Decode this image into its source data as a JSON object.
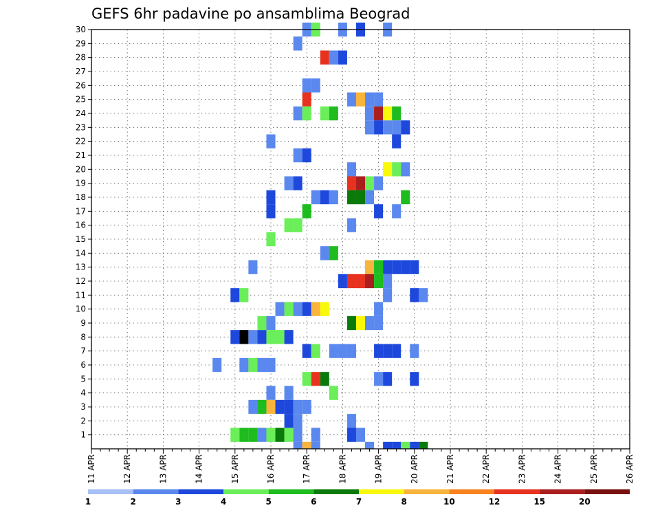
{
  "chart_data": {
    "type": "heatmap",
    "title": "GEFS 6hr padavine po ansamblima Beograd",
    "xlabel": "",
    "ylabel": "",
    "x_unit": "6h steps",
    "x_ticks": [
      "11 APR",
      "12 APR",
      "13 APR",
      "14 APR",
      "15 APR",
      "16 APR",
      "17 APR",
      "18 APR",
      "19 APR",
      "20 APR",
      "21 APR",
      "22 APR",
      "23 APR",
      "24 APR",
      "25 APR",
      "26 APR"
    ],
    "y_ticks": [
      "1",
      "2",
      "3",
      "4",
      "5",
      "6",
      "7",
      "8",
      "9",
      "10",
      "11",
      "12",
      "13",
      "14",
      "15",
      "16",
      "17",
      "18",
      "19",
      "20",
      "21",
      "22",
      "23",
      "24",
      "25",
      "26",
      "27",
      "28",
      "29",
      "30"
    ],
    "ylim": [
      0,
      30
    ],
    "grid": true,
    "colorbar": {
      "labels": [
        "1",
        "2",
        "3",
        "4",
        "5",
        "6",
        "7",
        "8",
        "10",
        "12",
        "15",
        "20"
      ],
      "colors": [
        "#a8c0f8",
        "#5a88ee",
        "#1e48dc",
        "#6aee5a",
        "#1ebc1e",
        "#0a7a0a",
        "#f8f80a",
        "#f8b43c",
        "#f8821e",
        "#e6321e",
        "#aa1e1e",
        "#781010"
      ]
    },
    "cells": [
      [
        24,
        30,
        1
      ],
      [
        25,
        30,
        3
      ],
      [
        28,
        30,
        1
      ],
      [
        30,
        30,
        2
      ],
      [
        33,
        30,
        1
      ],
      [
        23,
        29,
        1
      ],
      [
        26,
        28,
        9
      ],
      [
        27,
        28,
        1
      ],
      [
        28,
        28,
        2
      ],
      [
        24,
        26,
        1
      ],
      [
        25,
        26,
        1
      ],
      [
        24,
        25,
        9
      ],
      [
        29,
        25,
        1
      ],
      [
        30,
        25,
        7
      ],
      [
        31,
        25,
        1
      ],
      [
        32,
        25,
        1
      ],
      [
        23,
        24,
        1
      ],
      [
        24,
        24,
        3
      ],
      [
        26,
        24,
        3
      ],
      [
        27,
        24,
        4
      ],
      [
        31,
        24,
        1
      ],
      [
        32,
        24,
        10
      ],
      [
        33,
        24,
        6
      ],
      [
        34,
        24,
        4
      ],
      [
        31,
        23,
        1
      ],
      [
        32,
        23,
        2
      ],
      [
        33,
        23,
        1
      ],
      [
        34,
        23,
        1
      ],
      [
        35,
        23,
        2
      ],
      [
        20,
        22,
        1
      ],
      [
        34,
        22,
        2
      ],
      [
        23,
        21,
        1
      ],
      [
        24,
        21,
        2
      ],
      [
        29,
        20,
        1
      ],
      [
        33,
        20,
        6
      ],
      [
        34,
        20,
        3
      ],
      [
        35,
        20,
        1
      ],
      [
        22,
        19,
        1
      ],
      [
        23,
        19,
        2
      ],
      [
        29,
        19,
        9
      ],
      [
        30,
        19,
        10
      ],
      [
        31,
        19,
        3
      ],
      [
        32,
        19,
        1
      ],
      [
        20,
        18,
        2
      ],
      [
        25,
        18,
        1
      ],
      [
        26,
        18,
        2
      ],
      [
        27,
        18,
        1
      ],
      [
        29,
        18,
        5
      ],
      [
        30,
        18,
        5
      ],
      [
        31,
        18,
        1
      ],
      [
        35,
        18,
        4
      ],
      [
        20,
        17,
        2
      ],
      [
        24,
        17,
        4
      ],
      [
        32,
        17,
        2
      ],
      [
        34,
        17,
        1
      ],
      [
        22,
        16,
        3
      ],
      [
        23,
        16,
        3
      ],
      [
        29,
        16,
        1
      ],
      [
        20,
        15,
        3
      ],
      [
        26,
        14,
        1
      ],
      [
        27,
        14,
        4
      ],
      [
        18,
        13,
        1
      ],
      [
        31,
        13,
        7
      ],
      [
        32,
        13,
        4
      ],
      [
        33,
        13,
        2
      ],
      [
        34,
        13,
        2
      ],
      [
        35,
        13,
        2
      ],
      [
        36,
        13,
        2
      ],
      [
        28,
        12,
        2
      ],
      [
        29,
        12,
        9
      ],
      [
        30,
        12,
        9
      ],
      [
        31,
        12,
        10
      ],
      [
        32,
        12,
        4
      ],
      [
        33,
        12,
        1
      ],
      [
        16,
        11,
        2
      ],
      [
        17,
        11,
        3
      ],
      [
        33,
        11,
        1
      ],
      [
        36,
        11,
        2
      ],
      [
        37,
        11,
        1
      ],
      [
        21,
        10,
        1
      ],
      [
        22,
        10,
        3
      ],
      [
        23,
        10,
        1
      ],
      [
        24,
        10,
        2
      ],
      [
        25,
        10,
        7
      ],
      [
        26,
        10,
        6
      ],
      [
        32,
        10,
        1
      ],
      [
        19,
        9,
        3
      ],
      [
        20,
        9,
        1
      ],
      [
        29,
        9,
        5
      ],
      [
        30,
        9,
        6
      ],
      [
        31,
        9,
        1
      ],
      [
        32,
        9,
        1
      ],
      [
        16,
        8,
        2
      ],
      [
        17,
        8,
        13
      ],
      [
        18,
        8,
        1
      ],
      [
        19,
        8,
        2
      ],
      [
        20,
        8,
        3
      ],
      [
        21,
        8,
        3
      ],
      [
        22,
        8,
        2
      ],
      [
        24,
        7,
        2
      ],
      [
        25,
        7,
        3
      ],
      [
        27,
        7,
        1
      ],
      [
        28,
        7,
        1
      ],
      [
        29,
        7,
        1
      ],
      [
        32,
        7,
        2
      ],
      [
        33,
        7,
        2
      ],
      [
        34,
        7,
        2
      ],
      [
        36,
        7,
        1
      ],
      [
        14,
        6,
        1
      ],
      [
        17,
        6,
        1
      ],
      [
        18,
        6,
        3
      ],
      [
        19,
        6,
        1
      ],
      [
        20,
        6,
        1
      ],
      [
        24,
        5,
        3
      ],
      [
        25,
        5,
        9
      ],
      [
        26,
        5,
        5
      ],
      [
        32,
        5,
        1
      ],
      [
        33,
        5,
        2
      ],
      [
        36,
        5,
        2
      ],
      [
        20,
        4,
        1
      ],
      [
        22,
        4,
        1
      ],
      [
        27,
        4,
        3
      ],
      [
        18,
        3,
        1
      ],
      [
        19,
        3,
        4
      ],
      [
        20,
        3,
        7
      ],
      [
        21,
        3,
        2
      ],
      [
        22,
        3,
        2
      ],
      [
        23,
        3,
        1
      ],
      [
        24,
        3,
        1
      ],
      [
        22,
        2,
        2
      ],
      [
        23,
        2,
        1
      ],
      [
        29,
        2,
        1
      ],
      [
        16,
        1,
        3
      ],
      [
        17,
        1,
        4
      ],
      [
        18,
        1,
        4
      ],
      [
        19,
        1,
        1
      ],
      [
        20,
        1,
        3
      ],
      [
        21,
        1,
        5
      ],
      [
        22,
        1,
        3
      ],
      [
        23,
        1,
        1
      ],
      [
        25,
        1,
        1
      ],
      [
        29,
        1,
        2
      ],
      [
        30,
        1,
        1
      ],
      [
        23,
        0,
        1
      ],
      [
        24,
        0,
        7
      ],
      [
        25,
        0,
        1
      ],
      [
        31,
        0,
        1
      ],
      [
        33,
        0,
        2
      ],
      [
        34,
        0,
        2
      ],
      [
        35,
        0,
        3
      ],
      [
        36,
        0,
        2
      ],
      [
        37,
        0,
        5
      ]
    ]
  }
}
